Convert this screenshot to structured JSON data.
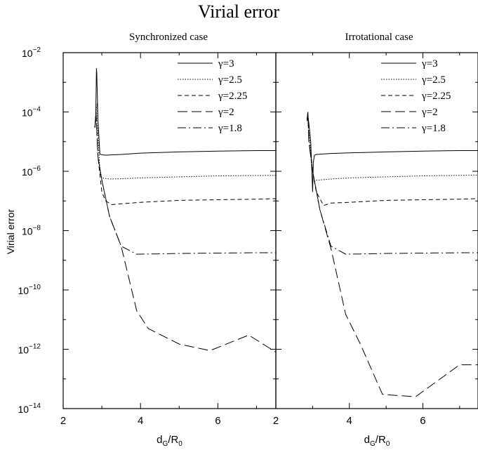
{
  "title": "Virial error",
  "ylabel": "Virial error",
  "chart_data": [
    {
      "type": "line",
      "title": "Synchronized case",
      "xlabel": "d_G/R_0",
      "ylabel": "Virial error",
      "xlim": [
        2,
        7.5
      ],
      "ylim": [
        1e-14,
        0.01
      ],
      "yscale": "log",
      "x_ticks": [
        "2",
        "4",
        "6"
      ],
      "y_ticks": [
        "10^-2",
        "10^-4",
        "10^-6",
        "10^-8",
        "10^-10",
        "10^-12",
        "10^-14"
      ],
      "legend_position": "top-right",
      "series": [
        {
          "name": "γ=3",
          "dash": "solid",
          "x": [
            2.82,
            2.84,
            2.86,
            2.87,
            2.88,
            2.9,
            2.95,
            3.0,
            3.1,
            3.5,
            4.0,
            5.0,
            6.0,
            7.0,
            7.5
          ],
          "y": [
            3e-05,
            5e-05,
            0.003,
            0.002,
            0.0005,
            5e-05,
            3.8e-06,
            3.6e-06,
            3.5e-06,
            3.7e-06,
            4.1e-06,
            4.5e-06,
            4.8e-06,
            5e-06,
            5e-06
          ]
        },
        {
          "name": "γ=2.5",
          "dash": "dotted",
          "x": [
            2.82,
            2.85,
            2.88,
            2.9,
            2.95,
            3.0,
            3.2,
            3.5,
            4.0,
            5.0,
            6.0,
            7.0,
            7.5
          ],
          "y": [
            3e-05,
            0.0001,
            0.0002,
            2e-05,
            1e-06,
            6e-07,
            5.5e-07,
            5.6e-07,
            6e-07,
            6.5e-07,
            7e-07,
            7.2e-07,
            7.3e-07
          ]
        },
        {
          "name": "γ=2.25",
          "dash": "dashed",
          "x": [
            2.82,
            2.85,
            2.9,
            3.0,
            3.1,
            3.25,
            3.5,
            4.0,
            5.0,
            6.0,
            7.0,
            7.5
          ],
          "y": [
            3e-05,
            0.0001,
            3e-06,
            2e-07,
            1e-07,
            7.5e-08,
            8e-08,
            9e-08,
            1.05e-07,
            1.1e-07,
            1.15e-07,
            1.2e-07
          ]
        },
        {
          "name": "γ=2",
          "dash": "longdash",
          "x": [
            2.82,
            2.85,
            2.9,
            3.0,
            3.2,
            3.5,
            3.9,
            4.2,
            5.0,
            5.8,
            6.8,
            7.5
          ],
          "y": [
            3e-05,
            0.0001,
            3e-06,
            5e-07,
            3e-08,
            3e-09,
            2e-11,
            5e-12,
            1.5e-12,
            9e-13,
            3e-12,
            8e-13
          ]
        },
        {
          "name": "γ=1.8",
          "dash": "dashdot",
          "x": [
            2.82,
            2.85,
            2.9,
            3.0,
            3.2,
            3.5,
            3.9,
            4.5,
            5.0,
            6.0,
            7.0,
            7.5
          ],
          "y": [
            3e-05,
            0.0001,
            3e-06,
            5e-07,
            3e-08,
            3e-09,
            1.6e-09,
            1.65e-09,
            1.7e-09,
            1.75e-09,
            1.8e-09,
            1.8e-09
          ]
        }
      ]
    },
    {
      "type": "line",
      "title": "Irrotational case",
      "xlabel": "d_G/R_0",
      "xlim": [
        2,
        7.5
      ],
      "ylim": [
        1e-14,
        0.01
      ],
      "yscale": "log",
      "x_ticks": [
        "2",
        "4",
        "6"
      ],
      "legend_position": "top-right",
      "series": [
        {
          "name": "γ=3",
          "dash": "solid",
          "x": [
            2.85,
            2.87,
            2.9,
            2.95,
            3.0,
            3.02,
            3.05,
            3.1,
            3.5,
            4.0,
            5.0,
            6.0,
            7.0,
            7.5
          ],
          "y": [
            5e-05,
            8e-05,
            4e-05,
            1e-05,
            2e-07,
            2e-06,
            3.5e-06,
            3.7e-06,
            4e-06,
            4.2e-06,
            4.5e-06,
            4.8e-06,
            5e-06,
            5e-06
          ]
        },
        {
          "name": "γ=2.5",
          "dash": "dotted",
          "x": [
            2.85,
            2.87,
            2.9,
            2.95,
            3.0,
            3.05,
            3.1,
            3.5,
            4.0,
            5.0,
            6.0,
            7.0,
            7.5
          ],
          "y": [
            5e-05,
            0.0001,
            2e-05,
            5e-06,
            1e-06,
            4.5e-07,
            5e-07,
            5.5e-07,
            6e-07,
            6.5e-07,
            7e-07,
            7.3e-07,
            7.5e-07
          ]
        },
        {
          "name": "γ=2.25",
          "dash": "dashed",
          "x": [
            2.85,
            2.87,
            2.9,
            3.0,
            3.1,
            3.3,
            3.5,
            4.0,
            5.0,
            6.0,
            7.0,
            7.5
          ],
          "y": [
            5e-05,
            0.0001,
            1e-05,
            1e-06,
            2e-07,
            7e-08,
            8.5e-08,
            9e-08,
            1.05e-07,
            1.1e-07,
            1.15e-07,
            1.2e-07
          ]
        },
        {
          "name": "γ=2",
          "dash": "longdash",
          "x": [
            2.85,
            2.87,
            2.9,
            3.0,
            3.2,
            3.5,
            3.9,
            4.3,
            4.9,
            5.8,
            7.0,
            7.5
          ],
          "y": [
            5e-05,
            0.0001,
            1e-05,
            1e-06,
            5e-08,
            2.5e-09,
            1.5e-11,
            1.5e-12,
            3e-14,
            2.5e-14,
            3e-13,
            3e-13
          ]
        },
        {
          "name": "γ=1.8",
          "dash": "dashdot",
          "x": [
            2.85,
            2.87,
            2.9,
            3.0,
            3.2,
            3.5,
            3.9,
            4.5,
            5.0,
            6.0,
            7.0,
            7.5
          ],
          "y": [
            5e-05,
            0.0001,
            1e-05,
            1e-06,
            5e-08,
            3e-09,
            1.6e-09,
            1.65e-09,
            1.7e-09,
            1.75e-09,
            1.8e-09,
            1.8e-09
          ]
        }
      ]
    }
  ]
}
